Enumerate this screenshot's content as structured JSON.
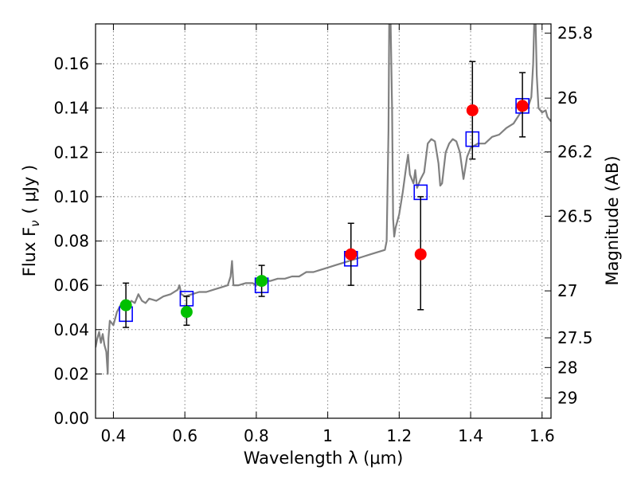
{
  "chart_data": {
    "type": "scatter",
    "xlabel": "Wavelength  λ (μm)",
    "ylabel": "Flux  F",
    "ylabel_sub": "ν",
    "ylabel_unit": "( μJy )",
    "y2label": "Magnitude (AB)",
    "xlim": [
      0.35,
      1.625
    ],
    "ylim": [
      0,
      0.178
    ],
    "grid": true,
    "x_ticks": [
      {
        "v": 0.4,
        "label": "0.4"
      },
      {
        "v": 0.6,
        "label": "0.6"
      },
      {
        "v": 0.8,
        "label": "0.8"
      },
      {
        "v": 1.0,
        "label": "1"
      },
      {
        "v": 1.2,
        "label": "1.2"
      },
      {
        "v": 1.4,
        "label": "1.4"
      },
      {
        "v": 1.6,
        "label": "1.6"
      }
    ],
    "y_ticks": [
      {
        "v": 0.0,
        "label": "0.00"
      },
      {
        "v": 0.02,
        "label": "0.02"
      },
      {
        "v": 0.04,
        "label": "0.04"
      },
      {
        "v": 0.06,
        "label": "0.06"
      },
      {
        "v": 0.08,
        "label": "0.08"
      },
      {
        "v": 0.1,
        "label": "0.10"
      },
      {
        "v": 0.12,
        "label": "0.12"
      },
      {
        "v": 0.14,
        "label": "0.14"
      },
      {
        "v": 0.16,
        "label": "0.16"
      }
    ],
    "mag_ticks": [
      {
        "v": 0.1738,
        "label": "25.8"
      },
      {
        "v": 0.1445,
        "label": "26"
      },
      {
        "v": 0.1202,
        "label": "26.2"
      },
      {
        "v": 0.0912,
        "label": "26.5"
      },
      {
        "v": 0.0575,
        "label": "27"
      },
      {
        "v": 0.0363,
        "label": "27.5"
      },
      {
        "v": 0.0229,
        "label": "28"
      },
      {
        "v": 0.0091,
        "label": "29"
      }
    ],
    "colors": {
      "spectrum": "#808080",
      "model": "#0000ff",
      "green": "#00c000",
      "red": "#ff0000",
      "errorbar": "#000000",
      "grid": "#808080"
    },
    "series": [
      {
        "type": "line",
        "points": [
          [
            0.35,
            0.032
          ],
          [
            0.355,
            0.036
          ],
          [
            0.36,
            0.039
          ],
          [
            0.365,
            0.034
          ],
          [
            0.37,
            0.038
          ],
          [
            0.375,
            0.033
          ],
          [
            0.38,
            0.03
          ],
          [
            0.384,
            0.02
          ],
          [
            0.386,
            0.036
          ],
          [
            0.39,
            0.044
          ],
          [
            0.4,
            0.042
          ],
          [
            0.41,
            0.048
          ],
          [
            0.42,
            0.051
          ],
          [
            0.43,
            0.052
          ],
          [
            0.44,
            0.05
          ],
          [
            0.45,
            0.053
          ],
          [
            0.46,
            0.052
          ],
          [
            0.47,
            0.056
          ],
          [
            0.48,
            0.053
          ],
          [
            0.49,
            0.052
          ],
          [
            0.5,
            0.054
          ],
          [
            0.52,
            0.053
          ],
          [
            0.54,
            0.055
          ],
          [
            0.56,
            0.056
          ],
          [
            0.58,
            0.058
          ],
          [
            0.585,
            0.06
          ],
          [
            0.59,
            0.056
          ],
          [
            0.6,
            0.055
          ],
          [
            0.62,
            0.056
          ],
          [
            0.64,
            0.057
          ],
          [
            0.66,
            0.057
          ],
          [
            0.68,
            0.058
          ],
          [
            0.7,
            0.059
          ],
          [
            0.72,
            0.06
          ],
          [
            0.728,
            0.064
          ],
          [
            0.732,
            0.071
          ],
          [
            0.736,
            0.06
          ],
          [
            0.75,
            0.06
          ],
          [
            0.77,
            0.061
          ],
          [
            0.79,
            0.061
          ],
          [
            0.8,
            0.06
          ],
          [
            0.82,
            0.062
          ],
          [
            0.84,
            0.062
          ],
          [
            0.86,
            0.063
          ],
          [
            0.88,
            0.063
          ],
          [
            0.9,
            0.064
          ],
          [
            0.92,
            0.064
          ],
          [
            0.94,
            0.066
          ],
          [
            0.96,
            0.066
          ],
          [
            0.98,
            0.067
          ],
          [
            1.0,
            0.068
          ],
          [
            1.02,
            0.069
          ],
          [
            1.04,
            0.07
          ],
          [
            1.06,
            0.071
          ],
          [
            1.08,
            0.072
          ],
          [
            1.1,
            0.073
          ],
          [
            1.12,
            0.074
          ],
          [
            1.14,
            0.075
          ],
          [
            1.16,
            0.076
          ],
          [
            1.165,
            0.08
          ],
          [
            1.17,
            0.13
          ],
          [
            1.172,
            0.178
          ],
          [
            1.176,
            0.178
          ],
          [
            1.18,
            0.14
          ],
          [
            1.183,
            0.09
          ],
          [
            1.186,
            0.082
          ],
          [
            1.19,
            0.086
          ],
          [
            1.2,
            0.092
          ],
          [
            1.21,
            0.102
          ],
          [
            1.22,
            0.114
          ],
          [
            1.225,
            0.119
          ],
          [
            1.23,
            0.11
          ],
          [
            1.24,
            0.106
          ],
          [
            1.245,
            0.112
          ],
          [
            1.25,
            0.104
          ],
          [
            1.26,
            0.108
          ],
          [
            1.27,
            0.111
          ],
          [
            1.28,
            0.124
          ],
          [
            1.29,
            0.126
          ],
          [
            1.3,
            0.125
          ],
          [
            1.31,
            0.115
          ],
          [
            1.315,
            0.105
          ],
          [
            1.32,
            0.106
          ],
          [
            1.33,
            0.12
          ],
          [
            1.34,
            0.124
          ],
          [
            1.35,
            0.126
          ],
          [
            1.36,
            0.125
          ],
          [
            1.37,
            0.12
          ],
          [
            1.38,
            0.108
          ],
          [
            1.39,
            0.118
          ],
          [
            1.4,
            0.122
          ],
          [
            1.42,
            0.124
          ],
          [
            1.44,
            0.124
          ],
          [
            1.46,
            0.127
          ],
          [
            1.48,
            0.128
          ],
          [
            1.5,
            0.131
          ],
          [
            1.52,
            0.133
          ],
          [
            1.54,
            0.138
          ],
          [
            1.56,
            0.14
          ],
          [
            1.57,
            0.145
          ],
          [
            1.575,
            0.16
          ],
          [
            1.578,
            0.178
          ],
          [
            1.582,
            0.178
          ],
          [
            1.585,
            0.155
          ],
          [
            1.59,
            0.14
          ],
          [
            1.6,
            0.138
          ],
          [
            1.61,
            0.139
          ],
          [
            1.615,
            0.136
          ],
          [
            1.625,
            0.134
          ]
        ]
      },
      {
        "type": "squares",
        "points": [
          [
            0.435,
            0.047
          ],
          [
            0.605,
            0.054
          ],
          [
            0.815,
            0.06
          ],
          [
            1.065,
            0.072
          ],
          [
            1.26,
            0.102
          ],
          [
            1.405,
            0.126
          ],
          [
            1.545,
            0.141
          ]
        ]
      },
      {
        "type": "points_with_errors",
        "color_key": "green",
        "points": [
          {
            "x": 0.435,
            "y": 0.051,
            "lo": 0.041,
            "hi": 0.061
          },
          {
            "x": 0.605,
            "y": 0.048,
            "lo": 0.042,
            "hi": 0.055
          },
          {
            "x": 0.815,
            "y": 0.062,
            "lo": 0.055,
            "hi": 0.069
          }
        ]
      },
      {
        "type": "points_with_errors",
        "color_key": "red",
        "points": [
          {
            "x": 1.065,
            "y": 0.074,
            "lo": 0.06,
            "hi": 0.088
          },
          {
            "x": 1.26,
            "y": 0.074,
            "lo": 0.049,
            "hi": 0.1
          },
          {
            "x": 1.405,
            "y": 0.139,
            "lo": 0.117,
            "hi": 0.161
          },
          {
            "x": 1.545,
            "y": 0.141,
            "lo": 0.127,
            "hi": 0.156
          }
        ]
      }
    ]
  }
}
